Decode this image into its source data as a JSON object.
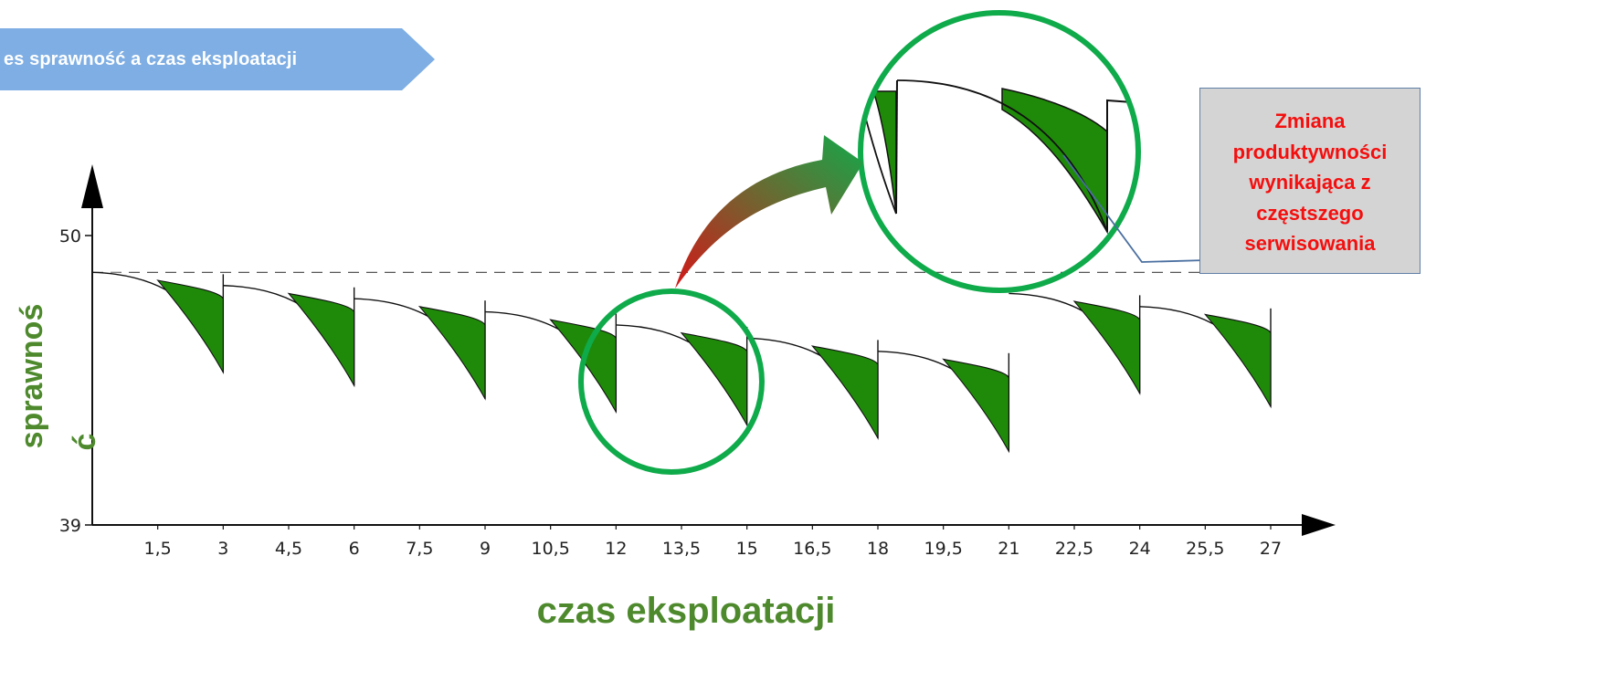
{
  "banner": {
    "text": "es sprawność a czas eksploatacji"
  },
  "callout": {
    "lines": [
      "Zmiana",
      "produktywności",
      "wynikająca z",
      "częstszego",
      "serwisowania"
    ]
  },
  "colors": {
    "fill": "#1f8a0a",
    "circle": "#0faa4a",
    "label": "#4e8a2d",
    "callout_text": "#f40f0f",
    "banner": "#7eaee3"
  },
  "chart_data": {
    "type": "area",
    "xlabel": "czas eksploatacji",
    "ylabel_lines": [
      "sprawnoś",
      "ć"
    ],
    "ylim": [
      39,
      50
    ],
    "yticks": [
      39,
      50
    ],
    "xlim": [
      0,
      27
    ],
    "xticks": [
      1.5,
      3,
      4.5,
      6,
      7.5,
      9,
      10.5,
      12,
      13.5,
      15,
      16.5,
      18,
      19.5,
      21,
      22.5,
      24,
      25.5,
      27
    ],
    "xtick_labels": [
      "1,5",
      "3",
      "4,5",
      "6",
      "7,5",
      "9",
      "10,5",
      "12",
      "13,5",
      "15",
      "16,5",
      "18",
      "19,5",
      "21",
      "22,5",
      "24",
      "25,5",
      "27"
    ],
    "reference_line": 48.6,
    "white_cycles": [
      {
        "start": 0,
        "end": 3,
        "top": 48.6,
        "bottom": 44.8
      },
      {
        "start": 3,
        "end": 6,
        "top": 48.1,
        "bottom": 44.3
      },
      {
        "start": 6,
        "end": 9,
        "top": 47.6,
        "bottom": 43.8
      },
      {
        "start": 9,
        "end": 12,
        "top": 47.1,
        "bottom": 43.3
      },
      {
        "start": 12,
        "end": 15,
        "top": 46.6,
        "bottom": 42.8
      },
      {
        "start": 15,
        "end": 18,
        "top": 46.1,
        "bottom": 42.3
      },
      {
        "start": 18,
        "end": 21,
        "top": 45.6,
        "bottom": 41.8
      },
      {
        "start": 21,
        "end": 24,
        "top": 47.8,
        "bottom": 44.0
      },
      {
        "start": 24,
        "end": 27,
        "top": 47.3,
        "bottom": 43.5
      }
    ],
    "green_cycles": [
      {
        "start": 1.5,
        "end": 3,
        "top": 48.3,
        "bottom": 44.8
      },
      {
        "start": 4.5,
        "end": 6,
        "top": 47.8,
        "bottom": 44.3
      },
      {
        "start": 7.5,
        "end": 9,
        "top": 47.3,
        "bottom": 43.8
      },
      {
        "start": 10.5,
        "end": 12,
        "top": 46.8,
        "bottom": 43.3
      },
      {
        "start": 13.5,
        "end": 15,
        "top": 46.3,
        "bottom": 42.8
      },
      {
        "start": 16.5,
        "end": 18,
        "top": 45.8,
        "bottom": 42.3
      },
      {
        "start": 19.5,
        "end": 21,
        "top": 45.3,
        "bottom": 41.8
      },
      {
        "start": 22.5,
        "end": 24,
        "top": 47.5,
        "bottom": 44.0
      },
      {
        "start": 25.5,
        "end": 27,
        "top": 47.0,
        "bottom": 43.5
      }
    ]
  }
}
